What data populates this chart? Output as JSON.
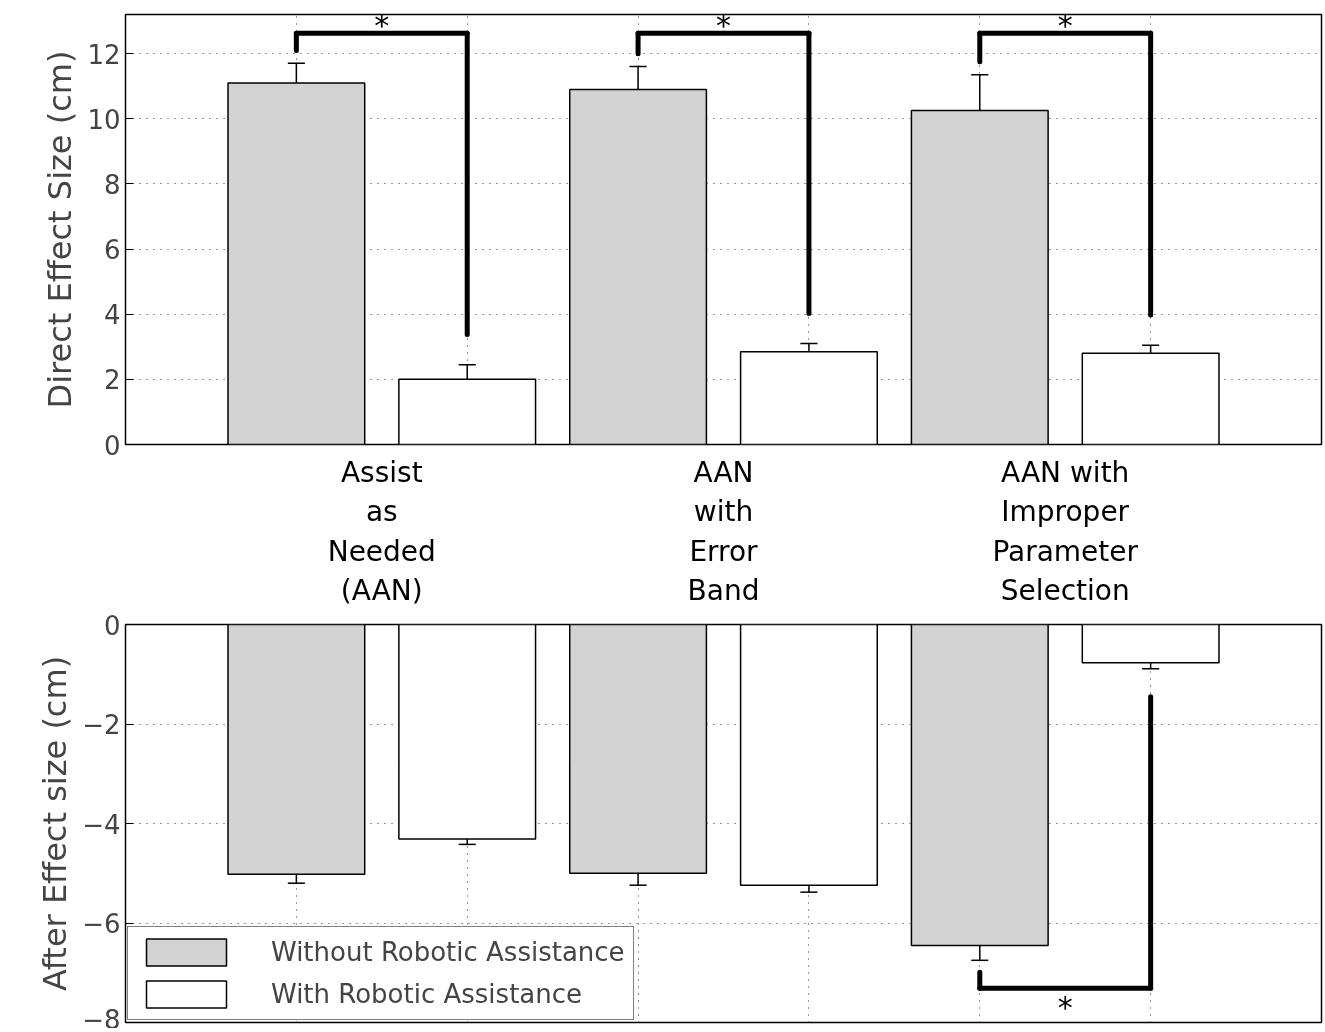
{
  "chart_data": [
    {
      "type": "bar",
      "ylabel": "Direct Effect Size (cm)",
      "categories": [
        "Assist\nas\nNeeded\n(AAN)",
        "AAN\nwith\nError\nBand",
        "AAN with\nImproper\nParameter\nSelection"
      ],
      "series": [
        {
          "color": "#d3d3d3",
          "values": [
            11.1,
            10.9,
            10.25
          ],
          "errors": [
            [
              11.1,
              11.7
            ],
            [
              10.9,
              11.6
            ],
            [
              10.25,
              11.35
            ]
          ]
        },
        {
          "color": "#ffffff",
          "values": [
            2.0,
            2.85,
            2.8
          ],
          "errors": [
            [
              2.0,
              2.45
            ],
            [
              2.85,
              3.1
            ],
            [
              2.8,
              3.05
            ]
          ]
        }
      ],
      "ylim": [
        0,
        13.2
      ],
      "yticks": [
        0,
        2,
        4,
        6,
        8,
        10,
        12
      ],
      "grid": true,
      "annotations": [
        "*",
        "*",
        "*"
      ]
    },
    {
      "type": "bar",
      "ylabel": "After Effect size (cm)",
      "categories": [
        null,
        null,
        null
      ],
      "series": [
        {
          "name": "Without Robotic Assistance",
          "color": "#d3d3d3",
          "values": [
            -5.02,
            -5.0,
            -6.45
          ],
          "errors": [
            [
              -5.2,
              -5.02
            ],
            [
              -5.24,
              -5.0
            ],
            [
              -6.75,
              -6.45
            ]
          ]
        },
        {
          "name": "With Robotic Assistance",
          "color": "#ffffff",
          "values": [
            -4.31,
            -5.24,
            -0.77
          ],
          "errors": [
            [
              -4.42,
              -4.31
            ],
            [
              -5.38,
              -5.24
            ],
            [
              -0.89,
              -0.77
            ]
          ]
        }
      ],
      "ylim": [
        -8,
        0
      ],
      "yticks": [
        0,
        -2,
        -4,
        -6,
        -8
      ],
      "grid": true,
      "tick_labels": "y",
      "legend": "bottom left",
      "annotations": [
        "*"
      ]
    }
  ]
}
